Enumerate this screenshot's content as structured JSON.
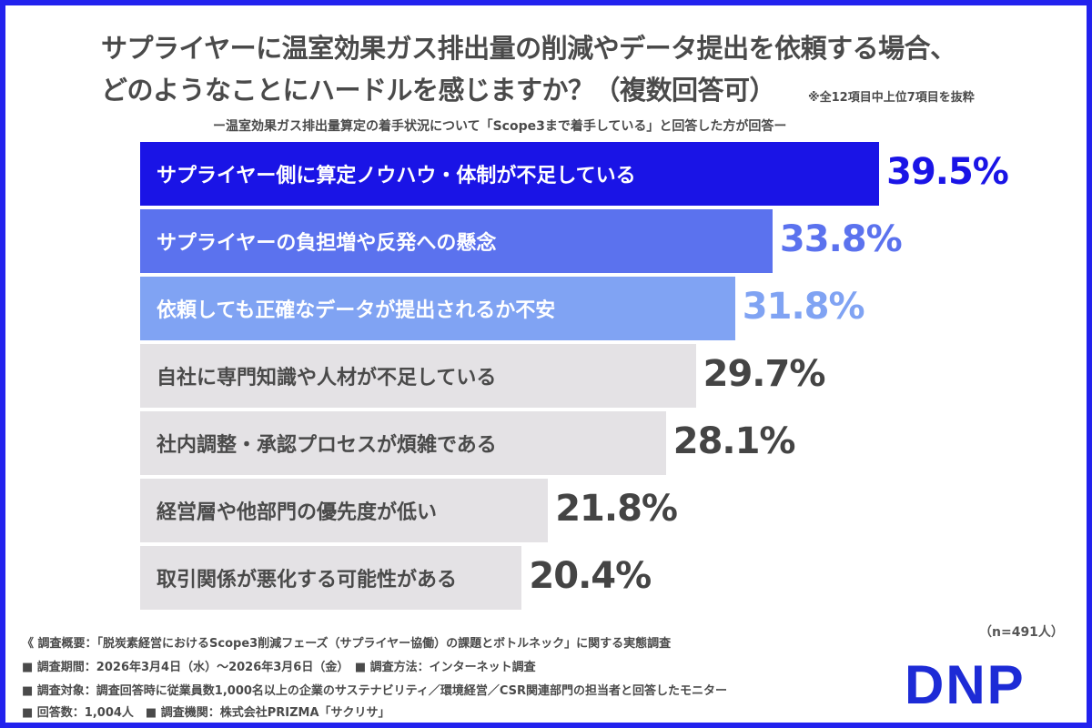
{
  "title_line1": "サプライヤーに温室効果ガス排出量の削減やデータ提出を依頼する場合、",
  "title_line2": "どのようなことにハードルを感じますか？（複数回答可）",
  "note": "※全12項目中上位7項目を抜粋",
  "subtitle": "ー温室効果ガス排出量算定の着手状況について「Scope3まで着手している」と回答した方が回答ー",
  "chart_data": {
    "type": "bar",
    "orientation": "horizontal",
    "unit": "%",
    "categories": [
      "サプライヤー側に算定ノウハウ・体制が不足している",
      "サプライヤーの負担増や反発への懸念",
      "依頼しても正確なデータが提出されるか不安",
      "自社に専門知識や人材が不足している",
      "社内調整・承認プロセスが煩雑である",
      "経営層や他部門の優先度が低い",
      "取引関係が悪化する可能性がある"
    ],
    "values": [
      39.5,
      33.8,
      31.8,
      29.7,
      28.1,
      21.8,
      20.4
    ],
    "labels": [
      "39.5%",
      "33.8%",
      "31.8%",
      "29.7%",
      "28.1%",
      "21.8%",
      "20.4%"
    ],
    "bar_colors": [
      "#1a14e6",
      "#5b72ee",
      "#80a3f3",
      "#e4e2e5",
      "#e4e2e5",
      "#e4e2e5",
      "#e4e2e5"
    ],
    "label_colors": [
      "#ffffff",
      "#ffffff",
      "#ffffff",
      "#4a4a4a",
      "#4a4a4a",
      "#4a4a4a",
      "#4a4a4a"
    ],
    "value_colors": [
      "#1a14e6",
      "#5b72ee",
      "#80a3f3",
      "#444444",
      "#444444",
      "#444444",
      "#444444"
    ]
  },
  "n_label": "（n=491人）",
  "footer": [
    "《 調査概要：「脱炭素経営におけるScope3削減フェーズ（サプライヤー協働）の課題とボトルネック」に関する実態調査",
    "■ 調査期間：2026年3月4日（水）～2026年3月6日（金）　■ 調査方法：インターネット調査",
    "■ 調査対象：調査回答時に従業員数1,000名以上の企業のサステナビリティ／環境経営／CSR関連部門の担当者と回答したモニター",
    "■ 回答数：1,004人　■ 調査機関：株式会社PRIZMA「サクリサ」"
  ],
  "logo": "DNP"
}
